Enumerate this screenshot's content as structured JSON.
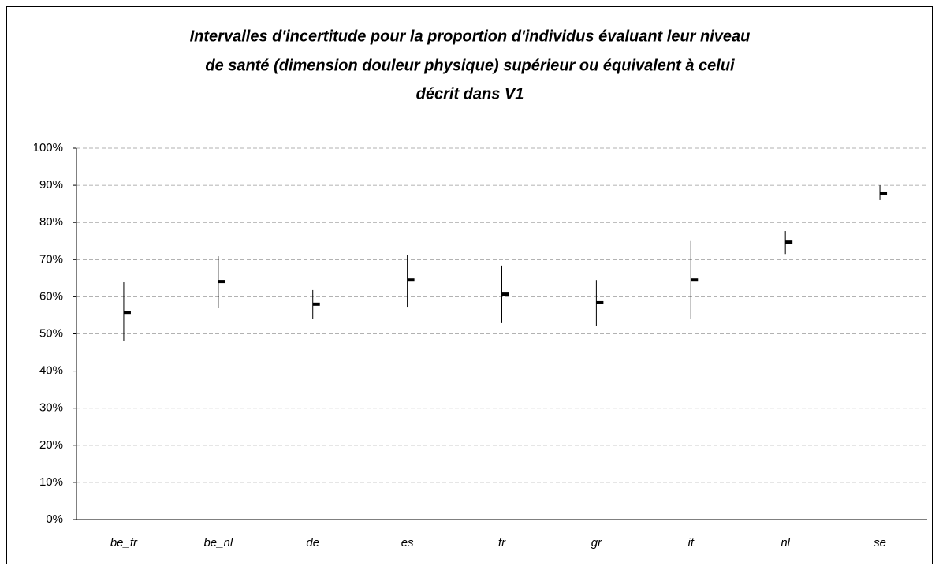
{
  "chart_data": {
    "type": "hilo",
    "title": [
      "Intervalles d'incertitude pour la proportion d'individus évaluant leur niveau",
      "de santé (dimension douleur physique) supérieur ou équivalent à celui",
      "décrit dans V1"
    ],
    "categories": [
      "be_fr",
      "be_nl",
      "de",
      "es",
      "fr",
      "gr",
      "it",
      "nl",
      "se"
    ],
    "high": [
      63.9,
      70.9,
      61.8,
      71.3,
      68.4,
      64.5,
      75.0,
      77.7,
      90.0
    ],
    "low": [
      48.2,
      56.9,
      54.1,
      57.1,
      52.9,
      52.2,
      54.1,
      71.5,
      86.0
    ],
    "values": [
      55.8,
      64.1,
      58.0,
      64.5,
      60.7,
      58.4,
      64.5,
      74.7,
      87.9
    ],
    "color": "#000000",
    "ylim": [
      0,
      100
    ],
    "yticks": [
      {
        "value": 0,
        "label": "0%"
      },
      {
        "value": 10,
        "label": "10%"
      },
      {
        "value": 20,
        "label": "20%"
      },
      {
        "value": 30,
        "label": "30%"
      },
      {
        "value": 40,
        "label": "40%"
      },
      {
        "value": 50,
        "label": "50%"
      },
      {
        "value": 60,
        "label": "60%"
      },
      {
        "value": 70,
        "label": "70%"
      },
      {
        "value": 80,
        "label": "80%"
      },
      {
        "value": 90,
        "label": "90%"
      },
      {
        "value": 100,
        "label": "100%"
      }
    ],
    "grid": true
  }
}
